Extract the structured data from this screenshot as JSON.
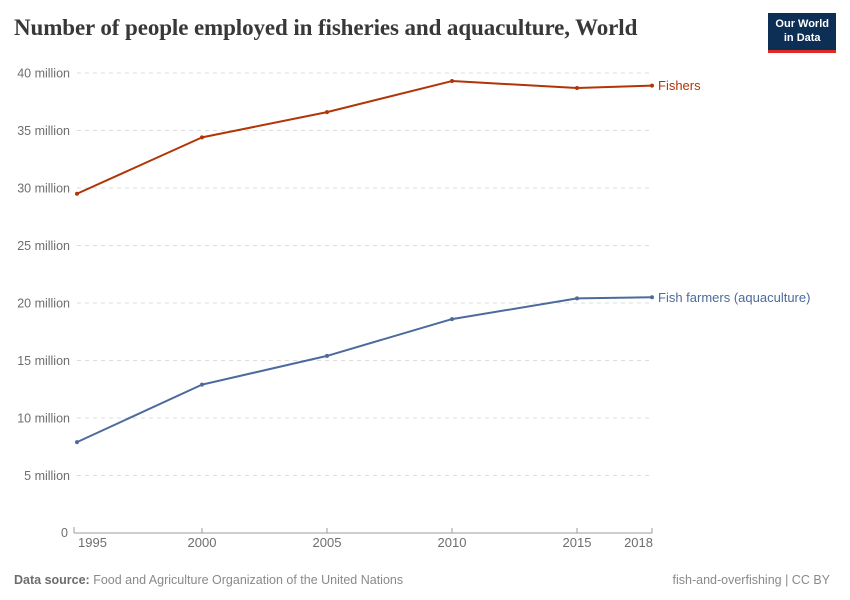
{
  "header": {
    "title": "Number of people employed in fisheries and aquaculture, World",
    "logo": {
      "line1": "Our World",
      "line2": "in Data",
      "bg_color": "#0d2e55",
      "accent_color": "#dc2b20"
    }
  },
  "chart_data": {
    "type": "line",
    "title": "Number of people employed in fisheries and aquaculture, World",
    "x": [
      1995,
      2000,
      2005,
      2010,
      2015,
      2018
    ],
    "x_tick_labels": [
      "1995",
      "2000",
      "2005",
      "2010",
      "2015",
      "2018"
    ],
    "series": [
      {
        "name": "Fishers",
        "color": "#B13507",
        "values": [
          29.5,
          34.4,
          36.6,
          39.3,
          38.7,
          38.9
        ]
      },
      {
        "name": "Fish farmers (aquaculture)",
        "color": "#4C6A9C",
        "values": [
          7.9,
          12.9,
          15.4,
          18.6,
          20.4,
          20.5
        ]
      }
    ],
    "unit": "million people",
    "y_ticks": [
      0,
      5,
      10,
      15,
      20,
      25,
      30,
      35,
      40
    ],
    "y_tick_labels": [
      "0",
      "5 million",
      "10 million",
      "15 million",
      "20 million",
      "25 million",
      "30 million",
      "35 million",
      "40 million"
    ],
    "ylim": [
      0,
      40
    ],
    "xlim": [
      1995,
      2018
    ],
    "grid": "horizontal dashed",
    "legend_position": "right of line ends",
    "grid_color": "#dcdcdc",
    "axis_color": "#9e9e9e",
    "tick_label_color": "#6e6e6e"
  },
  "footer": {
    "source_label": "Data source:",
    "source_text": " Food and Agriculture Organization of the United Nations",
    "right_text": "fish-and-overfishing | CC BY"
  }
}
